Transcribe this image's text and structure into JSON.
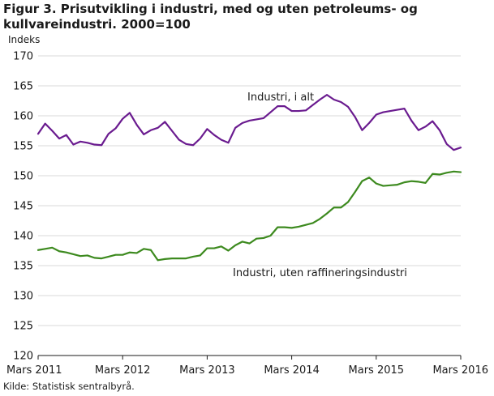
{
  "title": "Figur 3. Prisutvikling i industri, med og uten petroleums- og kullvareindustri. 2000=100",
  "source": "Kilde: Statistisk sentralbyrå.",
  "colors": {
    "series1": "#6a1b8f",
    "series2": "#3d8a1f",
    "grid": "#d9d9d9",
    "axis": "#1a1a1a"
  },
  "chart_data": {
    "type": "line",
    "ylabel": "Indeks",
    "ylim": [
      120,
      170
    ],
    "yticks": [
      120,
      125,
      130,
      135,
      140,
      145,
      150,
      155,
      160,
      165,
      170
    ],
    "xtick_labels": [
      "Mars 2011",
      "Mars 2012",
      "Mars 2013",
      "Mars 2014",
      "Mars 2015",
      "Mars 2016"
    ],
    "grid": "horizontal",
    "x_start": "2011-03",
    "x_end": "2016-03",
    "series": [
      {
        "name": "Industri, i alt",
        "values": [
          157.0,
          158.7,
          157.5,
          156.2,
          156.8,
          155.2,
          155.7,
          155.5,
          155.2,
          155.1,
          157.0,
          157.9,
          159.5,
          160.5,
          158.5,
          156.9,
          157.6,
          158.0,
          159.0,
          157.5,
          156.0,
          155.3,
          155.1,
          156.2,
          157.8,
          156.8,
          156.0,
          155.5,
          158.0,
          158.8,
          159.2,
          159.4,
          159.6,
          160.6,
          161.6,
          161.6,
          160.8,
          160.8,
          160.9,
          161.8,
          162.7,
          163.5,
          162.7,
          162.3,
          161.5,
          159.8,
          157.6,
          158.8,
          160.2,
          160.6,
          160.8,
          161.0,
          161.2,
          159.2,
          157.6,
          158.2,
          159.1,
          157.6,
          155.3,
          154.3,
          154.7
        ]
      },
      {
        "name": "Industri,  uten raffineringsindustri",
        "values": [
          137.6,
          137.8,
          138.0,
          137.4,
          137.2,
          136.9,
          136.6,
          136.7,
          136.3,
          136.2,
          136.5,
          136.8,
          136.8,
          137.2,
          137.1,
          137.8,
          137.6,
          135.9,
          136.1,
          136.2,
          136.2,
          136.2,
          136.5,
          136.7,
          137.9,
          137.9,
          138.2,
          137.5,
          138.4,
          139.0,
          138.7,
          139.5,
          139.6,
          140.0,
          141.4,
          141.4,
          141.3,
          141.5,
          141.8,
          142.1,
          142.8,
          143.7,
          144.7,
          144.7,
          145.6,
          147.3,
          149.1,
          149.7,
          148.7,
          148.3,
          148.4,
          148.5,
          148.9,
          149.1,
          149.0,
          148.8,
          150.3,
          150.2,
          150.5,
          150.7,
          150.6
        ]
      }
    ],
    "annotations": [
      "Industri,  i alt",
      "Industri,  uten raffineringsindustri"
    ]
  }
}
